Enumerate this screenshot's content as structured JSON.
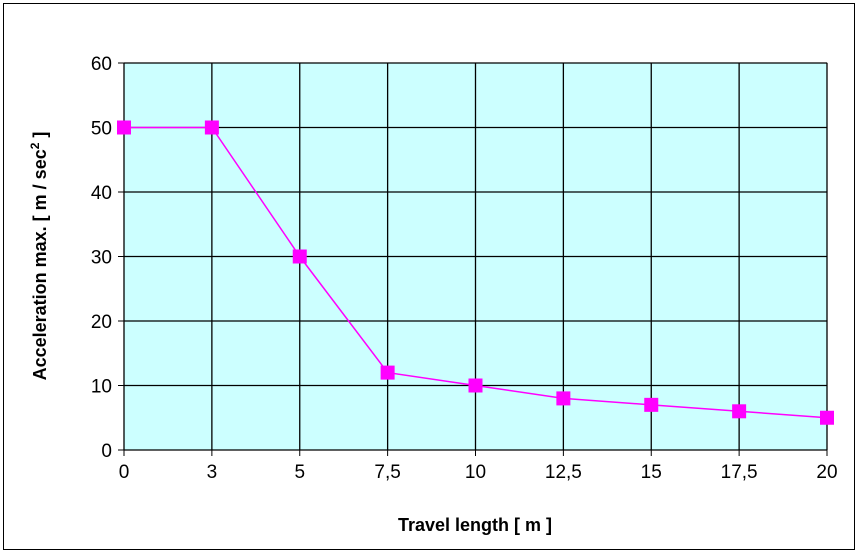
{
  "chart_data": {
    "type": "line",
    "title": "",
    "xlabel": "Travel length [ m ]",
    "ylabel_main": "Acceleration max. [ m / sec",
    "ylabel_sup": "2",
    "ylabel_end": " ]",
    "categories": [
      "0",
      "3",
      "5",
      "7,5",
      "10",
      "12,5",
      "15",
      "17,5",
      "20"
    ],
    "series": [
      {
        "values": [
          50,
          50,
          30,
          12,
          10,
          8,
          7,
          6,
          5
        ]
      }
    ],
    "ylim": [
      0,
      60
    ],
    "yticks": [
      0,
      10,
      20,
      30,
      40,
      50,
      60
    ],
    "grid": true,
    "colors": {
      "plot_background": "#CCFFFF",
      "series": "#FF00FF",
      "grid": "#000000"
    }
  }
}
